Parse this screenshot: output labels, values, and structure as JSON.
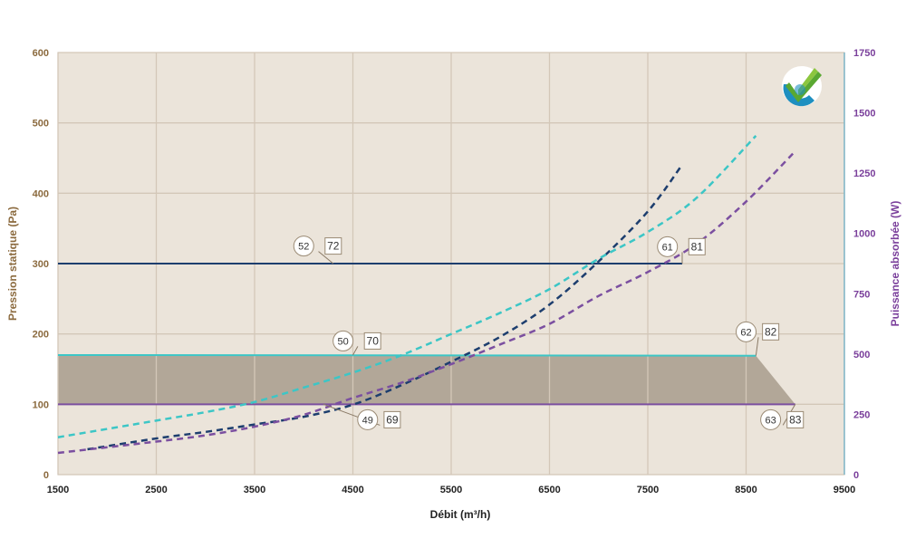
{
  "chart_data": {
    "type": "line",
    "title": "",
    "xlabel": "Débit (m³/h)",
    "ylabel_left": "Pression statique (Pa)",
    "ylabel_right": "Puissance absorbée (W)",
    "xlim": [
      1500,
      9500
    ],
    "ylim_left": [
      0,
      600
    ],
    "ylim_right": [
      0,
      1750
    ],
    "x_ticks": [
      "1500",
      "2500",
      "3500",
      "4500",
      "5500",
      "6500",
      "7500",
      "8500",
      "9500"
    ],
    "y_left_ticks": [
      "0",
      "100",
      "200",
      "300",
      "400",
      "500",
      "600"
    ],
    "y_right_ticks": [
      "0",
      "250",
      "500",
      "750",
      "1000",
      "1250",
      "1500",
      "1750"
    ],
    "grid": true,
    "background": "#ebe4da",
    "series": [
      {
        "kind": "pressure-line",
        "color": "#1d3e6e",
        "x": [
          1500,
          7850
        ],
        "y": [
          300,
          300
        ]
      },
      {
        "kind": "pressure-line",
        "color": "#3cc6c6",
        "x": [
          1500,
          8600
        ],
        "y": [
          170,
          169
        ]
      },
      {
        "kind": "pressure-line",
        "color": "#7b4fa0",
        "x": [
          1500,
          9000
        ],
        "y": [
          100,
          100
        ]
      },
      {
        "kind": "power-curve",
        "color": "#1d3e6e",
        "x": [
          1800,
          2500,
          3000,
          3500,
          4000,
          4500,
          5000,
          5500,
          6000,
          6500,
          7000,
          7500,
          7850
        ],
        "y": [
          105,
          150,
          177,
          208,
          240,
          290,
          372,
          468,
          572,
          705,
          884,
          1091,
          1285
        ]
      },
      {
        "kind": "power-curve",
        "color": "#3cc6c6",
        "x": [
          1500,
          2500,
          3000,
          3500,
          4000,
          4500,
          5000,
          5500,
          6000,
          6500,
          7000,
          7500,
          8000,
          8600
        ],
        "y": [
          155,
          224,
          259,
          301,
          361,
          423,
          496,
          583,
          671,
          769,
          895,
          1006,
          1149,
          1405
        ]
      },
      {
        "kind": "power-curve",
        "color": "#7b4fa0",
        "x": [
          1500,
          2500,
          3000,
          3500,
          4000,
          4500,
          5000,
          5500,
          6000,
          6500,
          7000,
          7500,
          8000,
          8500,
          9000
        ],
        "y": [
          90,
          137,
          163,
          199,
          248,
          318,
          382,
          458,
          540,
          625,
          741,
          840,
          958,
          1132,
          1341
        ]
      }
    ],
    "zone": {
      "color": "#a89c8c",
      "points": [
        [
          1500,
          170
        ],
        [
          8600,
          169
        ],
        [
          9000,
          100
        ],
        [
          1500,
          100
        ]
      ]
    },
    "labels": [
      {
        "circle": "52",
        "box": "72",
        "anchor": [
          4300,
          300
        ],
        "circle_at": [
          4000,
          325
        ],
        "box_at": [
          4300,
          325
        ]
      },
      {
        "circle": "61",
        "box": "81",
        "anchor": [
          7850,
          300
        ],
        "circle_at": [
          7700,
          324
        ],
        "box_at": [
          8000,
          324
        ]
      },
      {
        "circle": "50",
        "box": "70",
        "anchor": [
          4500,
          170
        ],
        "circle_at": [
          4400,
          190
        ],
        "box_at": [
          4700,
          190
        ]
      },
      {
        "circle": "62",
        "box": "82",
        "anchor": [
          8600,
          169
        ],
        "circle_at": [
          8500,
          203
        ],
        "box_at": [
          8750,
          203
        ]
      },
      {
        "circle": "49",
        "box": "69",
        "anchor": [
          4200,
          100
        ],
        "circle_at": [
          4650,
          78
        ],
        "box_at": [
          4900,
          78
        ]
      },
      {
        "circle": "63",
        "box": "83",
        "anchor": [
          9000,
          100
        ],
        "circle_at": [
          8750,
          78
        ],
        "box_at": [
          9000,
          78
        ]
      }
    ]
  }
}
